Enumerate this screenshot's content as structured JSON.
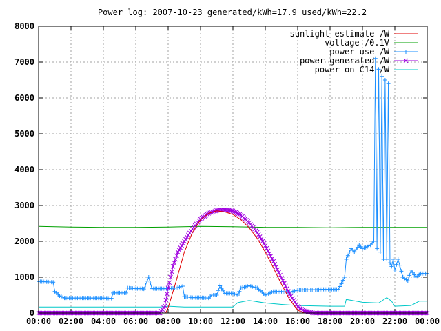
{
  "chart_data": {
    "type": "line",
    "title": "Power log: 2007-10-23 generated/kWh=17.9 used/kWh=22.2",
    "xlabel": "",
    "ylabel": "",
    "xlim": [
      0,
      24
    ],
    "ylim": [
      0,
      8000
    ],
    "grid": true,
    "legend_position": "top-right",
    "x_tick_labels": [
      "00:00",
      "02:00",
      "04:00",
      "06:00",
      "08:00",
      "10:00",
      "12:00",
      "14:00",
      "16:00",
      "18:00",
      "20:00",
      "22:00",
      "00:00"
    ],
    "y_tick_labels": [
      "0",
      "1000",
      "2000",
      "3000",
      "4000",
      "5000",
      "6000",
      "7000",
      "8000"
    ],
    "y_ticks": [
      0,
      1000,
      2000,
      3000,
      4000,
      5000,
      6000,
      7000,
      8000
    ],
    "series": [
      {
        "name": "sunlight estimate /W",
        "color": "#e00000",
        "style": "line",
        "x": [
          7.85,
          8.0,
          8.5,
          9.0,
          9.5,
          10.0,
          10.5,
          11.0,
          11.5,
          12.0,
          12.5,
          13.0,
          13.5,
          14.0,
          14.5,
          15.0,
          15.5,
          16.0,
          16.4
        ],
        "y": [
          0,
          150,
          900,
          1700,
          2250,
          2600,
          2780,
          2850,
          2820,
          2750,
          2600,
          2380,
          2080,
          1700,
          1260,
          800,
          380,
          80,
          0
        ]
      },
      {
        "name": "voltage /0.1V",
        "color": "#00a000",
        "style": "line",
        "x": [
          0,
          2,
          4,
          6,
          8,
          10,
          12,
          14,
          16,
          18,
          20,
          22,
          24
        ],
        "y": [
          2420,
          2400,
          2390,
          2390,
          2400,
          2420,
          2410,
          2390,
          2390,
          2380,
          2390,
          2390,
          2390
        ]
      },
      {
        "name": "power use /W",
        "color": "#1e90ff",
        "style": "linespoints-plus",
        "x": [
          0,
          0.5,
          0.9,
          1.0,
          1.3,
          1.6,
          2.0,
          3.0,
          4.0,
          4.5,
          4.6,
          5.0,
          5.4,
          5.5,
          6.0,
          6.4,
          6.5,
          6.8,
          7.0,
          7.5,
          8.0,
          8.5,
          8.9,
          9.0,
          9.5,
          10.0,
          10.5,
          10.7,
          11.0,
          11.2,
          11.5,
          12.0,
          12.3,
          12.5,
          13.0,
          13.5,
          14.0,
          14.5,
          15.0,
          15.5,
          16.0,
          16.5,
          17.0,
          17.5,
          18.0,
          18.5,
          18.7,
          18.9,
          19.0,
          19.3,
          19.5,
          19.8,
          20.0,
          20.3,
          20.5,
          20.7,
          20.8,
          20.9,
          21.0,
          21.1,
          21.2,
          21.3,
          21.4,
          21.5,
          21.6,
          21.7,
          21.8,
          21.9,
          22.0,
          22.2,
          22.5,
          22.8,
          23.0,
          23.3,
          23.6,
          24.0
        ],
        "y": [
          880,
          870,
          860,
          600,
          480,
          420,
          420,
          420,
          420,
          410,
          560,
          560,
          560,
          700,
          680,
          680,
          670,
          1000,
          680,
          680,
          680,
          700,
          750,
          460,
          430,
          430,
          420,
          500,
          500,
          760,
          550,
          550,
          500,
          700,
          760,
          700,
          500,
          600,
          600,
          580,
          640,
          650,
          650,
          660,
          660,
          660,
          820,
          1000,
          1500,
          1800,
          1700,
          1900,
          1800,
          1850,
          1900,
          2000,
          7100,
          1800,
          6800,
          1700,
          6600,
          1500,
          6500,
          1500,
          6400,
          1400,
          1300,
          1500,
          1200,
          1500,
          1000,
          900,
          1200,
          1000,
          1100,
          1100
        ]
      },
      {
        "name": "power generated /W",
        "color": "#a000e0",
        "style": "linespoints-x",
        "x": [
          0,
          7.5,
          7.8,
          8.0,
          8.3,
          8.6,
          9.0,
          9.5,
          10.0,
          10.5,
          11.0,
          11.5,
          12.0,
          12.5,
          13.0,
          13.5,
          14.0,
          14.5,
          15.0,
          15.5,
          16.0,
          16.4,
          16.8,
          17.0,
          17.5,
          24.0
        ],
        "y": [
          0,
          0,
          200,
          700,
          1300,
          1700,
          2000,
          2350,
          2620,
          2780,
          2860,
          2880,
          2850,
          2730,
          2520,
          2250,
          1880,
          1440,
          980,
          530,
          180,
          60,
          20,
          0,
          0,
          0
        ]
      },
      {
        "name": "power on C14 /W",
        "color": "#00c8c8",
        "style": "line",
        "x": [
          0,
          7.5,
          8.0,
          9.0,
          10.0,
          11.0,
          12.0,
          12.3,
          13.0,
          14.0,
          15.0,
          16.0,
          17.0,
          18.0,
          18.9,
          19.0,
          20.0,
          21.0,
          21.5,
          21.8,
          22.0,
          23.0,
          23.5,
          24.0
        ],
        "y": [
          170,
          170,
          190,
          170,
          170,
          170,
          170,
          290,
          350,
          280,
          240,
          210,
          200,
          190,
          190,
          380,
          300,
          280,
          430,
          330,
          190,
          210,
          330,
          330
        ]
      }
    ]
  }
}
